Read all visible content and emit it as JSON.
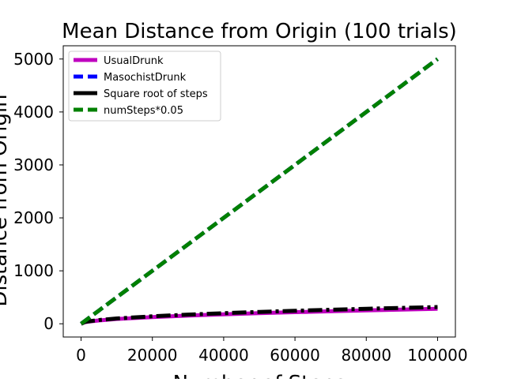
{
  "chart_data": {
    "type": "line",
    "title": "Mean Distance from Origin (100 trials)",
    "xlabel": "Number of Steps",
    "ylabel": "Distance from Origin",
    "xlim": [
      -5000,
      105000
    ],
    "ylim": [
      -250,
      5250
    ],
    "x_ticks": [
      0,
      20000,
      40000,
      60000,
      80000,
      100000
    ],
    "x_tick_labels": [
      "0",
      "20000",
      "40000",
      "60000",
      "80000",
      "100000"
    ],
    "y_ticks": [
      0,
      1000,
      2000,
      3000,
      4000,
      5000
    ],
    "y_tick_labels": [
      "0",
      "1000",
      "2000",
      "3000",
      "4000",
      "5000"
    ],
    "grid": false,
    "legend_position": "top-left",
    "x": [
      0,
      1000,
      2000,
      5000,
      10000,
      20000,
      30000,
      40000,
      50000,
      60000,
      70000,
      80000,
      90000,
      100000
    ],
    "series": [
      {
        "name": "UsualDrunk",
        "color": "#bf00bf",
        "style": "solid",
        "values": [
          0,
          28,
          40,
          63,
          90,
          127,
          155,
          179,
          200,
          219,
          237,
          253,
          268,
          283
        ]
      },
      {
        "name": "MasochistDrunk",
        "color": "#0000ff",
        "style": "dashed",
        "values": [
          0,
          50,
          100,
          250,
          500,
          1000,
          1500,
          2000,
          2500,
          3000,
          3500,
          4000,
          4500,
          5000
        ]
      },
      {
        "name": "Square root of steps",
        "color": "#000000",
        "style": "dashdot",
        "values": [
          0,
          32,
          45,
          71,
          100,
          141,
          173,
          200,
          224,
          245,
          265,
          283,
          300,
          316
        ]
      },
      {
        "name": "numSteps*0.05",
        "color": "#008000",
        "style": "dashed",
        "values": [
          0,
          50,
          100,
          250,
          500,
          1000,
          1500,
          2000,
          2500,
          3000,
          3500,
          4000,
          4500,
          5000
        ]
      }
    ]
  }
}
